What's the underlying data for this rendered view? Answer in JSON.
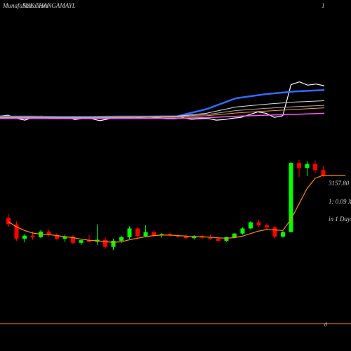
{
  "header": {
    "site": "MunafaSutra.com",
    "symbol": "NSE THANGAMAYL",
    "marker": "1"
  },
  "chart_data": [
    {
      "type": "line",
      "ylim": [
        0,
        4000
      ],
      "series": [
        {
          "color": "#ffffff",
          "width": 1.2,
          "values": [
            2050,
            2080,
            1960,
            1900,
            2000,
            2050,
            1980,
            1950,
            2000,
            1920,
            1960,
            1950,
            1880,
            1940,
            2000,
            2040,
            1960,
            2000,
            2010,
            1980,
            1950,
            1950,
            1990,
            1930,
            1950,
            1960,
            1900,
            1920,
            1970,
            2000,
            2100,
            2200,
            2150,
            2000,
            2060,
            3200,
            3300,
            3180,
            3220,
            3160
          ]
        },
        {
          "color": "#2f6bff",
          "width": 2.5,
          "values": [
            2030,
            2030,
            2020,
            2020,
            2030,
            2030,
            2040,
            2300,
            2700,
            2850,
            2950,
            3000
          ]
        },
        {
          "color": "#dddddd",
          "width": 1,
          "values": [
            2010,
            2010,
            2000,
            2000,
            2010,
            2020,
            2040,
            2150,
            2380,
            2480,
            2560,
            2610
          ]
        },
        {
          "color": "#aaaaaa",
          "width": 1,
          "values": [
            2000,
            2000,
            1990,
            1990,
            2000,
            2010,
            2030,
            2100,
            2250,
            2330,
            2390,
            2440
          ]
        },
        {
          "color": "#ff9a2e",
          "width": 1,
          "values": [
            1990,
            1990,
            1980,
            1980,
            1990,
            2000,
            2010,
            2060,
            2160,
            2230,
            2290,
            2350
          ]
        },
        {
          "color": "#ff55ff",
          "width": 1.5,
          "values": [
            1960,
            1960,
            1955,
            1955,
            1960,
            1965,
            1970,
            1990,
            2040,
            2080,
            2110,
            2150
          ]
        }
      ]
    },
    {
      "type": "candlestick",
      "ylim": [
        0,
        3840
      ],
      "colors": {
        "up": "#00ff00",
        "down": "#ff0000"
      },
      "open": [
        2330,
        2200,
        1920,
        1980,
        1950,
        2060,
        1990,
        1920,
        1960,
        1840,
        1890,
        1860,
        1900,
        1760,
        1880,
        1950,
        2120,
        1970,
        2050,
        1990,
        2010,
        1980,
        1960,
        1930,
        1970,
        1940,
        1920,
        1880,
        1950,
        2020,
        2120,
        2240,
        2180,
        2140,
        1960,
        2050,
        3400,
        3300,
        3380,
        3260
      ],
      "high": [
        2400,
        2260,
        2010,
        2060,
        2090,
        2100,
        2030,
        2000,
        1990,
        1920,
        2000,
        2200,
        1950,
        1920,
        1980,
        2160,
        2150,
        2180,
        2080,
        2030,
        2040,
        2010,
        2000,
        1990,
        2000,
        2000,
        1960,
        1960,
        2030,
        2140,
        2260,
        2280,
        2220,
        2170,
        2070,
        3420,
        3460,
        3440,
        3450,
        3340
      ],
      "low": [
        2150,
        1880,
        1850,
        1900,
        1930,
        1960,
        1890,
        1860,
        1810,
        1800,
        1850,
        1800,
        1720,
        1700,
        1840,
        1920,
        1920,
        1950,
        1950,
        1940,
        1960,
        1930,
        1910,
        1900,
        1920,
        1900,
        1860,
        1860,
        1930,
        2000,
        2100,
        2150,
        2100,
        1920,
        1940,
        2040,
        3120,
        3140,
        3200,
        3130
      ],
      "close": [
        2200,
        1920,
        1980,
        1950,
        2060,
        1990,
        1920,
        1960,
        1840,
        1890,
        1860,
        1900,
        1760,
        1880,
        1950,
        2120,
        1970,
        2050,
        1990,
        2010,
        1980,
        1960,
        1930,
        1970,
        1940,
        1920,
        1880,
        1950,
        2020,
        2120,
        2240,
        2180,
        2140,
        1960,
        2050,
        3400,
        3300,
        3380,
        3260,
        3157.8
      ],
      "ma": {
        "color": "#ff8c00",
        "values": [
          2250,
          2150,
          2080,
          2030,
          2010,
          2000,
          1980,
          1960,
          1940,
          1910,
          1890,
          1880,
          1860,
          1850,
          1860,
          1900,
          1930,
          1960,
          1980,
          1990,
          1990,
          1980,
          1970,
          1960,
          1955,
          1950,
          1935,
          1930,
          1940,
          1970,
          2020,
          2070,
          2100,
          2090,
          2080,
          2300,
          2600,
          2900,
          3100,
          3157.8
        ]
      },
      "last_label": "3157.80",
      "ratio_label": "1: 0.09 X",
      "period_label": "in 1 Days",
      "axis_label": "0"
    }
  ]
}
